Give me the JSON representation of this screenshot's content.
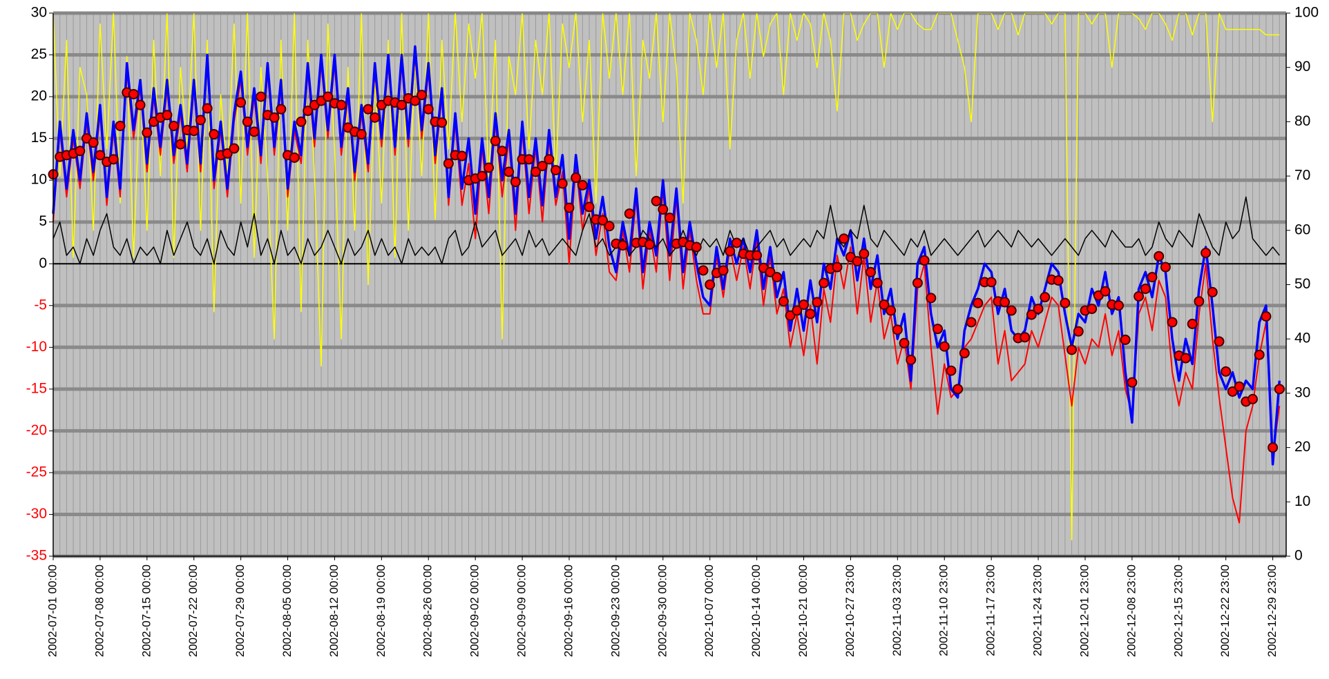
{
  "chart_data": {
    "type": "line",
    "categories": [
      "2002-07-01 00:00",
      null,
      null,
      null,
      null,
      null,
      null,
      "2002-07-08 00:00",
      null,
      null,
      null,
      null,
      null,
      null,
      "2002-07-15 00:00",
      null,
      null,
      null,
      null,
      null,
      null,
      "2002-07-22 00:00",
      null,
      null,
      null,
      null,
      null,
      null,
      "2002-07-29 00:00",
      null,
      null,
      null,
      null,
      null,
      null,
      "2002-08-05 00:00",
      null,
      null,
      null,
      null,
      null,
      null,
      "2002-08-12 00:00",
      null,
      null,
      null,
      null,
      null,
      null,
      "2002-08-19 00:00",
      null,
      null,
      null,
      null,
      null,
      null,
      "2002-08-26 00:00",
      null,
      null,
      null,
      null,
      null,
      null,
      "2002-09-02 00:00",
      null,
      null,
      null,
      null,
      null,
      null,
      "2002-09-09 00:00",
      null,
      null,
      null,
      null,
      null,
      null,
      "2002-09-16 00:00",
      null,
      null,
      null,
      null,
      null,
      null,
      "2002-09-23 00:00",
      null,
      null,
      null,
      null,
      null,
      null,
      "2002-09-30 00:00",
      null,
      null,
      null,
      null,
      null,
      null,
      "2002-10-07 00:00",
      null,
      null,
      null,
      null,
      null,
      null,
      "2002-10-14 00:00",
      null,
      null,
      null,
      null,
      null,
      null,
      "2002-10-21 00:00",
      null,
      null,
      null,
      null,
      null,
      null,
      "2002-10-27 23:00",
      null,
      null,
      null,
      null,
      null,
      null,
      "2002-11-03 23:00",
      null,
      null,
      null,
      null,
      null,
      null,
      "2002-11-10 23:00",
      null,
      null,
      null,
      null,
      null,
      null,
      "2002-11-17 23:00",
      null,
      null,
      null,
      null,
      null,
      null,
      "2002-11-24 23:00",
      null,
      null,
      null,
      null,
      null,
      null,
      "2002-12-01 23:00",
      null,
      null,
      null,
      null,
      null,
      null,
      "2002-12-08 23:00",
      null,
      null,
      null,
      null,
      null,
      null,
      "2002-12-15 23:00",
      null,
      null,
      null,
      null,
      null,
      null,
      "2002-12-22 23:00",
      null,
      null,
      null,
      null,
      null,
      null,
      "2002-12-29 23:00",
      null
    ],
    "ylim": [
      -35,
      30
    ],
    "yticks": [
      -35,
      -30,
      -25,
      -20,
      -15,
      -10,
      -5,
      0,
      5,
      10,
      15,
      20,
      25,
      30
    ],
    "y2lim": [
      0,
      100
    ],
    "y2ticks": [
      0,
      10,
      20,
      30,
      40,
      50,
      60,
      70,
      80,
      90,
      100
    ],
    "negative_tick_color": "#ff0000",
    "grid": true,
    "background": "#c0c0c0",
    "series": [
      {
        "axis": "y2",
        "color": "#ffff00",
        "width": 1.5,
        "values": [
          100,
          70,
          95,
          55,
          90,
          85,
          60,
          98,
          75,
          100,
          65,
          92,
          55,
          88,
          60,
          95,
          70,
          100,
          55,
          90,
          75,
          100,
          60,
          95,
          45,
          85,
          70,
          98,
          65,
          100,
          55,
          90,
          70,
          40,
          95,
          60,
          100,
          45,
          95,
          70,
          35,
          98,
          75,
          40,
          90,
          60,
          100,
          50,
          88,
          65,
          95,
          55,
          100,
          60,
          92,
          70,
          100,
          62,
          95,
          75,
          100,
          80,
          98,
          88,
          100,
          70,
          95,
          40,
          92,
          85,
          100,
          75,
          95,
          85,
          100,
          70,
          98,
          90,
          100,
          80,
          95,
          65,
          100,
          88,
          100,
          85,
          100,
          70,
          95,
          88,
          100,
          80,
          100,
          90,
          65,
          100,
          95,
          85,
          100,
          90,
          100,
          75,
          95,
          100,
          88,
          100,
          92,
          98,
          100,
          85,
          100,
          95,
          100,
          98,
          90,
          100,
          95,
          82,
          100,
          100,
          95,
          98,
          100,
          100,
          90,
          100,
          97,
          100,
          100,
          98,
          97,
          97,
          100,
          100,
          100,
          95,
          90,
          80,
          100,
          100,
          100,
          97,
          100,
          100,
          96,
          100,
          100,
          100,
          100,
          98,
          100,
          100,
          3,
          100,
          100,
          98,
          100,
          100,
          90,
          100,
          100,
          100,
          99,
          97,
          100,
          100,
          98,
          95,
          100,
          100,
          96,
          100,
          100,
          80,
          100,
          97,
          97,
          97,
          97,
          97,
          97,
          96,
          96,
          96
        ]
      },
      {
        "color": "#ff0000",
        "width": 2,
        "values": [
          5,
          16,
          8,
          15,
          9,
          17,
          10,
          18,
          7,
          16,
          8,
          23,
          15,
          21,
          11,
          20,
          13,
          21,
          12,
          18,
          11,
          21,
          11,
          24,
          9,
          16,
          8,
          17,
          22,
          13,
          20,
          12,
          23,
          13,
          21,
          8,
          16,
          12,
          23,
          14,
          24,
          15,
          24,
          13,
          20,
          10,
          18,
          11,
          23,
          14,
          24,
          13,
          24,
          14,
          25,
          15,
          23,
          12,
          20,
          7,
          17,
          7,
          12,
          3,
          14,
          6,
          17,
          8,
          15,
          4,
          16,
          6,
          14,
          5,
          15,
          7,
          11,
          0,
          12,
          4,
          9,
          1,
          6,
          -1,
          -2,
          4,
          -1,
          8,
          -3,
          4,
          -1,
          9,
          -2,
          8,
          -3,
          4,
          -2,
          -6,
          -6,
          1,
          -4,
          2,
          -2,
          2,
          -3,
          3,
          -5,
          1,
          -6,
          -3,
          -10,
          -6,
          -11,
          -5,
          -12,
          -3,
          -7,
          1,
          -3,
          2,
          -6,
          1,
          -7,
          -2,
          -9,
          -6,
          -12,
          -9,
          -15,
          -3,
          0,
          -10,
          -18,
          -12,
          -16,
          -15,
          -10,
          -9,
          -7,
          -5,
          -4,
          -12,
          -8,
          -14,
          -13,
          -12,
          -8,
          -10,
          -7,
          -4,
          -5,
          -11,
          -17,
          -10,
          -12,
          -9,
          -10,
          -6,
          -11,
          -8,
          -15,
          -18,
          -6,
          -4,
          -8,
          -2,
          -4,
          -13,
          -17,
          -13,
          -15,
          -6,
          0,
          -9,
          -16,
          -22,
          -28,
          -31,
          -20,
          -17,
          -11,
          -7,
          -23,
          -17
        ]
      },
      {
        "color": "#0000ff",
        "width": 3.5,
        "values": [
          6,
          17,
          9,
          16,
          10,
          18,
          11,
          19,
          8,
          17,
          9,
          24,
          16,
          22,
          12,
          21,
          14,
          22,
          13,
          19,
          12,
          22,
          12,
          25,
          10,
          17,
          9,
          18,
          23,
          14,
          21,
          13,
          24,
          14,
          22,
          9,
          17,
          13,
          24,
          15,
          25,
          16,
          25,
          14,
          21,
          11,
          19,
          12,
          24,
          15,
          25,
          14,
          25,
          15,
          26,
          16,
          24,
          13,
          21,
          8,
          18,
          9,
          15,
          6,
          15,
          8,
          18,
          10,
          16,
          6,
          17,
          8,
          15,
          7,
          16,
          8,
          13,
          3,
          13,
          6,
          10,
          3,
          8,
          2,
          -1,
          5,
          1,
          9,
          -1,
          5,
          1,
          10,
          1,
          9,
          -1,
          5,
          0,
          -4,
          -5,
          2,
          -3,
          3,
          0,
          3,
          -1,
          4,
          -3,
          2,
          -4,
          -1,
          -8,
          -3,
          -8,
          -2,
          -7,
          0,
          -3,
          3,
          1,
          4,
          -2,
          3,
          -3,
          1,
          -6,
          -3,
          -9,
          -6,
          -14,
          0,
          2,
          -6,
          -10,
          -8,
          -15,
          -16,
          -8,
          -5,
          -3,
          0,
          -1,
          -6,
          -3,
          -8,
          -9,
          -8,
          -4,
          -6,
          -3,
          0,
          -1,
          -6,
          -10,
          -6,
          -7,
          -3,
          -5,
          -1,
          -6,
          -4,
          -13,
          -19,
          -3,
          -1,
          -4,
          1,
          -1,
          -9,
          -14,
          -9,
          -12,
          -3,
          2,
          -5,
          -13,
          -15,
          -13,
          -16,
          -14,
          -15,
          -7,
          -5,
          -24,
          -14
        ]
      },
      {
        "color": "#000000",
        "width": 1.5,
        "values": [
          3,
          5,
          1,
          2,
          0,
          3,
          1,
          4,
          6,
          2,
          1,
          3,
          0,
          2,
          1,
          2,
          0,
          4,
          1,
          3,
          5,
          2,
          1,
          3,
          0,
          4,
          2,
          1,
          5,
          2,
          6,
          1,
          3,
          0,
          4,
          1,
          2,
          0,
          3,
          1,
          2,
          4,
          2,
          0,
          3,
          1,
          2,
          4,
          1,
          3,
          1,
          2,
          0,
          3,
          1,
          2,
          1,
          2,
          0,
          3,
          4,
          1,
          2,
          5,
          2,
          3,
          4,
          1,
          2,
          3,
          1,
          4,
          2,
          3,
          1,
          2,
          3,
          2,
          1,
          4,
          6,
          2,
          3,
          1,
          2,
          3,
          1,
          2,
          4,
          3,
          2,
          3,
          1,
          2,
          4,
          2,
          1,
          3,
          2,
          3,
          1,
          4,
          2,
          3,
          1,
          2,
          3,
          4,
          2,
          3,
          1,
          2,
          3,
          2,
          4,
          3,
          7,
          3,
          2,
          4,
          3,
          7,
          3,
          2,
          4,
          3,
          2,
          1,
          3,
          2,
          4,
          1,
          2,
          3,
          2,
          1,
          2,
          3,
          4,
          2,
          3,
          4,
          3,
          2,
          4,
          3,
          2,
          3,
          2,
          1,
          2,
          3,
          2,
          1,
          3,
          4,
          3,
          2,
          4,
          3,
          2,
          2,
          3,
          1,
          2,
          5,
          3,
          2,
          4,
          3,
          2,
          6,
          4,
          2,
          1,
          5,
          3,
          4,
          8,
          3,
          2,
          1,
          2,
          1
        ]
      },
      {
        "style": "markers",
        "color": "#ff0000",
        "values": [
          10.7,
          12.8,
          13,
          13.2,
          13.5,
          15,
          14.5,
          13,
          12.2,
          12.5,
          16.5,
          20.5,
          20.3,
          19,
          15.7,
          17,
          17.5,
          17.8,
          16.5,
          14.3,
          16,
          15.9,
          17.2,
          18.6,
          15.5,
          13,
          13.2,
          13.8,
          19.3,
          17,
          15.8,
          20,
          17.8,
          17.5,
          18.5,
          13,
          12.7,
          17,
          18.3,
          19,
          19.5,
          20,
          19.2,
          19,
          16.3,
          15.8,
          15.5,
          18.5,
          17.5,
          19,
          19.5,
          19.3,
          19,
          19.8,
          19.5,
          20.2,
          18.5,
          17,
          16.9,
          12,
          13,
          12.9,
          10,
          10.2,
          10.5,
          11.5,
          14.7,
          13.5,
          11,
          9.8,
          12.5,
          12.5,
          11,
          11.7,
          12.5,
          11.2,
          9.6,
          6.7,
          10.3,
          9.4,
          6.8,
          5.3,
          5.2,
          4.5,
          2.4,
          2.2,
          6,
          2.5,
          2.6,
          2.3,
          7.5,
          6.5,
          5.5,
          2.4,
          2.6,
          2.2,
          2,
          -0.8,
          -2.5,
          -1.1,
          -0.8,
          1.5,
          2.5,
          1.2,
          1,
          1,
          -0.5,
          -1,
          -1.6,
          -4.5,
          -6.2,
          -5.6,
          -4.9,
          -6,
          -4.6,
          -2.3,
          -0.6,
          -0.4,
          3,
          0.8,
          0.3,
          1.2,
          -1,
          -2.3,
          -4.9,
          -5.6,
          -7.9,
          -9.5,
          -11.5,
          -2.3,
          0.4,
          -4.1,
          -7.8,
          -9.9,
          -12.8,
          -15,
          -10.7,
          -7,
          -4.7,
          -2.2,
          -2.2,
          -4.5,
          -4.6,
          -5.6,
          -8.9,
          -8.8,
          -6.1,
          -5.4,
          -4,
          -1.9,
          -2,
          -4.7,
          -10.3,
          -8.1,
          -5.6,
          -5.4,
          -3.8,
          -3.3,
          -4.9,
          -5,
          -9.1,
          -14.2,
          -3.9,
          -3,
          -1.6,
          0.9,
          -0.4,
          -7,
          -11,
          -11.3,
          -7.2,
          -4.5,
          1.3,
          -3.4,
          -9.3,
          -12.9,
          -15.3,
          -14.7,
          -16.5,
          -16.2,
          -10.9,
          -6.3,
          -22,
          -15
        ]
      }
    ]
  }
}
